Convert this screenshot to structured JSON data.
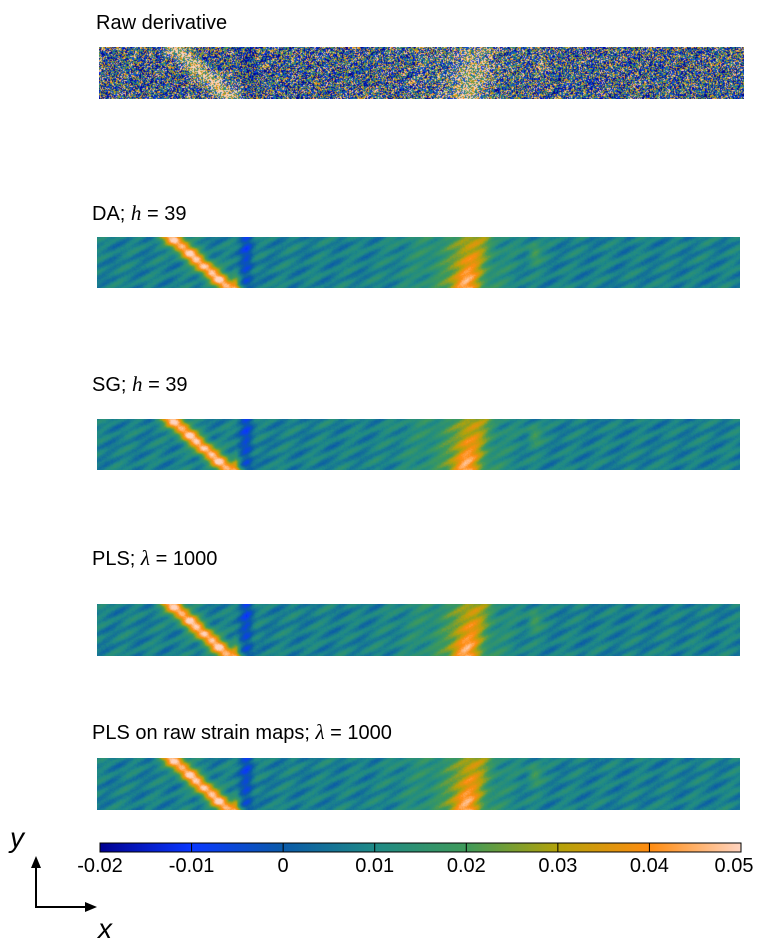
{
  "chart_data": {
    "type": "heatmap",
    "panels": [
      {
        "title_prefix": "Raw derivative",
        "param_symbol": "",
        "param_eq": "",
        "param_value": "",
        "kind": "raw"
      },
      {
        "title_prefix": "DA; ",
        "param_symbol": "h",
        "param_eq": " = ",
        "param_value": "39",
        "kind": "smooth"
      },
      {
        "title_prefix": "SG; ",
        "param_symbol": "h",
        "param_eq": " = ",
        "param_value": "39",
        "kind": "smooth"
      },
      {
        "title_prefix": "PLS; ",
        "param_symbol": "λ",
        "param_eq": " = ",
        "param_value": "1000",
        "kind": "smooth"
      },
      {
        "title_prefix": "PLS on raw strain maps; ",
        "param_symbol": "λ",
        "param_eq": " = ",
        "param_value": "1000",
        "kind": "smooth"
      }
    ],
    "colorbar": {
      "min": -0.02,
      "max": 0.05,
      "ticks": [
        "-0.02",
        "-0.01",
        "0",
        "0.01",
        "0.02",
        "0.03",
        "0.04",
        "0.05"
      ],
      "colors": [
        "#000090",
        "#0a38ff",
        "#0a5aa8",
        "#1f8a86",
        "#3f9a5a",
        "#b3a20a",
        "#ff8c10",
        "#ffd4c0"
      ]
    },
    "axes": {
      "x_label": "x",
      "y_label": "y"
    }
  }
}
